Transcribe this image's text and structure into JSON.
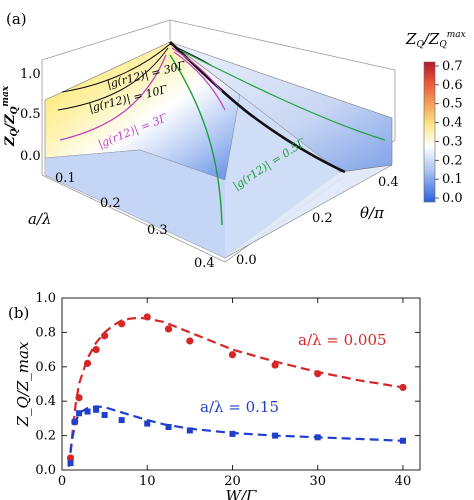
{
  "panel_a": {
    "label": "(a)",
    "z_axis_label": "Z_Q/Z_Q^max",
    "z_axis_label_main": "Z",
    "z_axis_label_sub": "Q",
    "z_axis_label_div": "/Z",
    "z_axis_label_sub2": "Q",
    "z_axis_label_sup": "max",
    "x_axis_label": "a/λ",
    "y_axis_label": "θ/π",
    "colorbar_label_main": "Z",
    "colorbar_label_sub": "Q",
    "colorbar_label_div": "/Z",
    "colorbar_label_sub2": "Q",
    "colorbar_label_sup": "max",
    "colorbar_ticks": [
      "0.7",
      "0.6",
      "0.5",
      "0.4",
      "0.3",
      "0.2",
      "0.1",
      "0.0"
    ],
    "colorbar_colors": [
      "#b2182b",
      "#e6543a",
      "#f4a15a",
      "#fde68a",
      "#ffffff",
      "#b4c9f0",
      "#6f98eb",
      "#2b5fe0"
    ],
    "z_ticks": [
      "1.0",
      "0.5",
      "0.0"
    ],
    "x_ticks": [
      "0.1",
      "0.2",
      "0.3",
      "0.4"
    ],
    "y_ticks": [
      "0.0",
      "0.2",
      "0.4"
    ],
    "contours": [
      {
        "label": "|g(r12)| = 30Γ",
        "color": "#111111"
      },
      {
        "label": "|g(r12)| = 10Γ",
        "color": "#111111"
      },
      {
        "label": "|g(r12)| = 3Γ",
        "color": "#c040c0"
      },
      {
        "label": "|g(r12)| = 0.5Γ",
        "color": "#1e9e3a"
      }
    ]
  },
  "panel_b": {
    "label": "(b)",
    "y_axis_label": "Z_Q/Z_max",
    "x_axis_label": "W/Γ"
  },
  "chart_data": {
    "type": "scatter",
    "xlabel": "W/Γ",
    "ylabel": "Z_Q/Z_max",
    "xlim": [
      0,
      42
    ],
    "ylim": [
      0,
      1.0
    ],
    "xticks": [
      0,
      10,
      20,
      30,
      40
    ],
    "yticks": [
      0.0,
      0.2,
      0.4,
      0.6,
      0.8,
      1.0
    ],
    "grid": false,
    "series": [
      {
        "name": "a/λ = 0.005",
        "color": "#d62728",
        "marker": "circle",
        "x": [
          1,
          1.5,
          2,
          3,
          4,
          5,
          7,
          10,
          12.5,
          15,
          20,
          25,
          30,
          40
        ],
        "y": [
          0.07,
          0.28,
          0.42,
          0.62,
          0.7,
          0.78,
          0.85,
          0.89,
          0.82,
          0.75,
          0.67,
          0.61,
          0.56,
          0.48
        ]
      },
      {
        "name": "a/λ = 0.005 (fit)",
        "color": "#d62728",
        "style": "dashed",
        "x": [
          0.8,
          1.2,
          1.6,
          2,
          3,
          4,
          5,
          6,
          7,
          8,
          9,
          10,
          12,
          14,
          16,
          20,
          25,
          30,
          35,
          40
        ],
        "y": [
          0.02,
          0.2,
          0.38,
          0.5,
          0.65,
          0.74,
          0.8,
          0.84,
          0.87,
          0.88,
          0.885,
          0.88,
          0.86,
          0.82,
          0.78,
          0.7,
          0.63,
          0.57,
          0.52,
          0.48
        ]
      },
      {
        "name": "a/λ = 0.15",
        "color": "#1f3fcc",
        "marker": "square",
        "x": [
          1,
          1.5,
          2,
          3,
          4,
          5,
          7,
          10,
          12.5,
          15,
          20,
          25,
          30,
          40
        ],
        "y": [
          0.04,
          0.28,
          0.33,
          0.34,
          0.35,
          0.32,
          0.29,
          0.27,
          0.25,
          0.23,
          0.21,
          0.2,
          0.19,
          0.17
        ]
      },
      {
        "name": "a/λ = 0.15 (fit)",
        "color": "#1f3fcc",
        "style": "dashed",
        "x": [
          0.8,
          1.2,
          1.6,
          2,
          3,
          4,
          5,
          6,
          8,
          10,
          12,
          15,
          20,
          25,
          30,
          35,
          40
        ],
        "y": [
          0.02,
          0.18,
          0.28,
          0.33,
          0.36,
          0.37,
          0.365,
          0.35,
          0.32,
          0.29,
          0.265,
          0.24,
          0.215,
          0.2,
          0.19,
          0.18,
          0.17
        ]
      }
    ],
    "annotations": [
      "a/λ = 0.005",
      "a/λ = 0.15"
    ]
  }
}
